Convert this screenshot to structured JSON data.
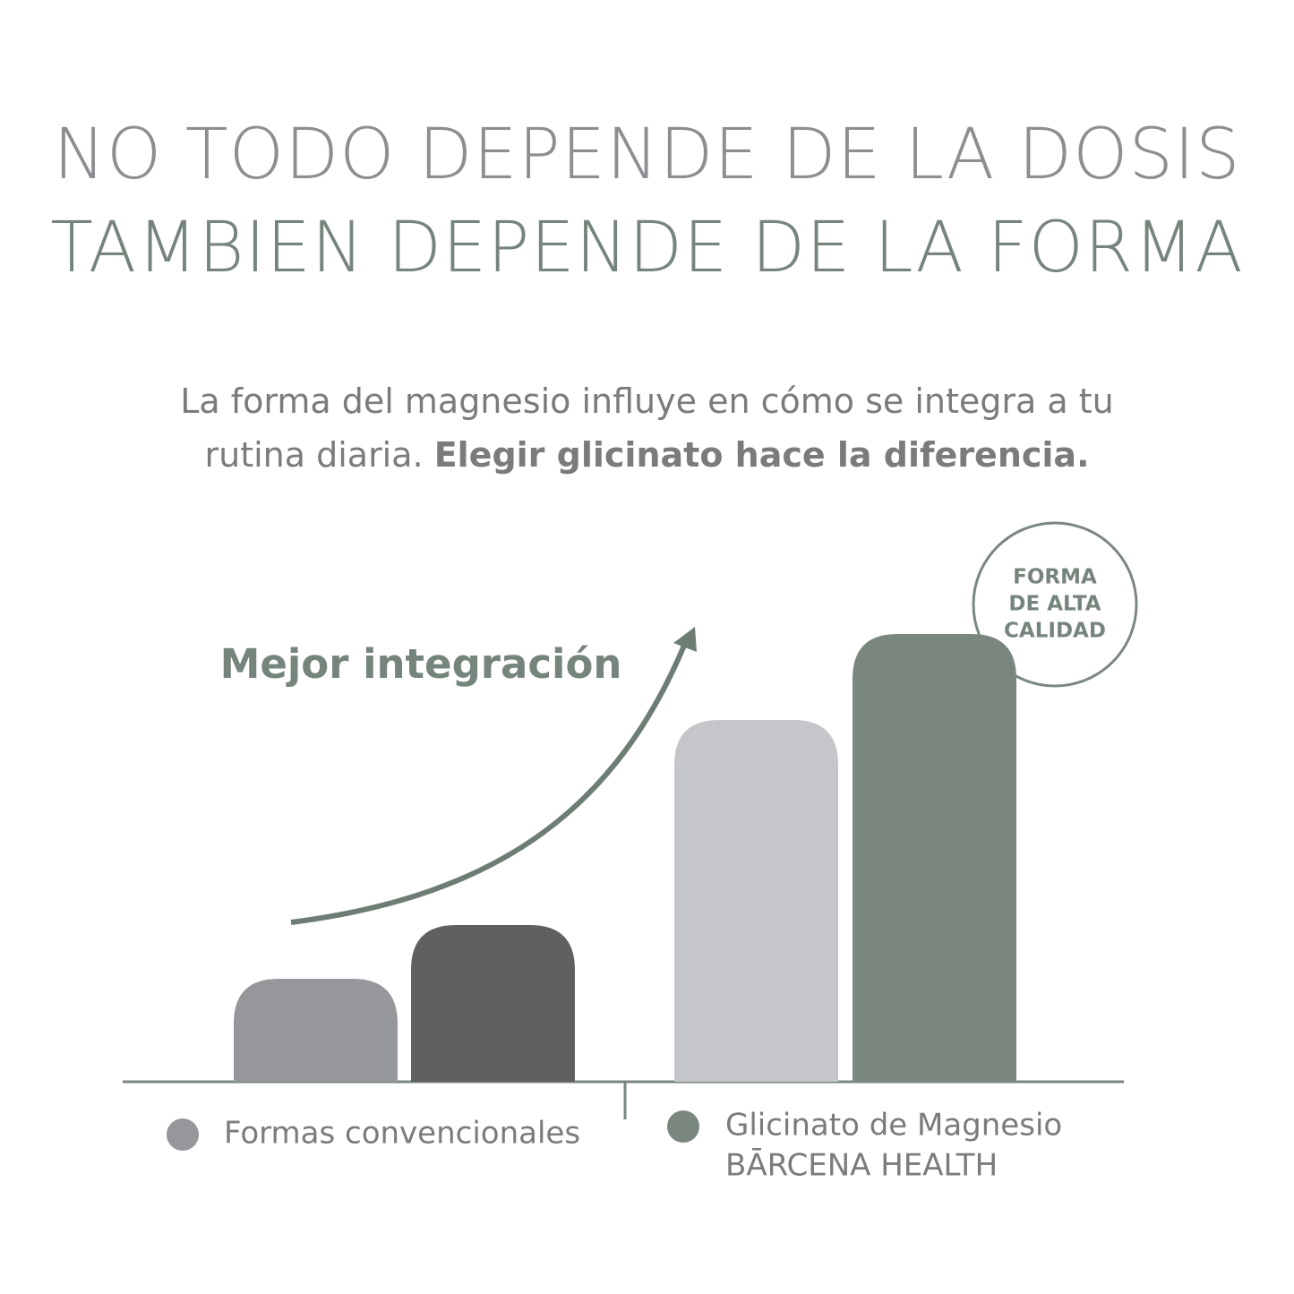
{
  "header": {
    "title_lines": [
      "NO TODO DEPENDE DE LA DOSIS",
      "TAMBIEN DEPENDE DE LA FORMA"
    ]
  },
  "subtitle": {
    "text": "La forma del magnesio influye en cómo se integra a tu rutina diaria.",
    "bold": "Elegir glicinato hace la diferencia."
  },
  "chart_data": {
    "type": "bar",
    "annotation": "Mejor integración",
    "badge": [
      "FORMA",
      "DE ALTA",
      "CALIDAD"
    ],
    "groups": [
      {
        "label_lines": [
          "Formas convencionales"
        ],
        "color": "#96979a",
        "bars": [
          {
            "value": 115,
            "color": "#96979a"
          },
          {
            "value": 175,
            "color": "#606060"
          }
        ]
      },
      {
        "label_lines": [
          "Glicinato de Magnesio",
          "BĀRCENA HEALTH"
        ],
        "color": "#7a877f",
        "bars": [
          {
            "value": 404,
            "color": "#c4c6ca"
          },
          {
            "value": 500,
            "color": "#7a877f"
          }
        ]
      }
    ]
  }
}
